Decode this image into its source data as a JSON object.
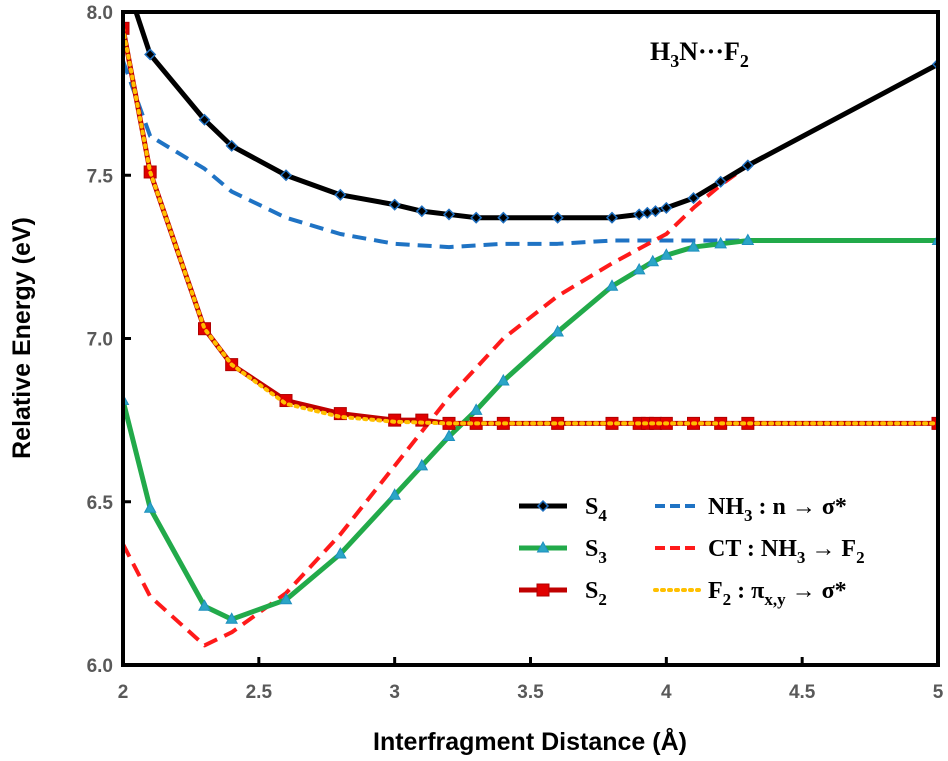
{
  "chart_data": {
    "type": "line",
    "title": "",
    "annotation": {
      "main": "H",
      "sub1": "3",
      "mid": "N···F",
      "sub2": "2"
    },
    "xlabel": "Interfragment Distance (Å)",
    "ylabel": "Relative Energy (eV)",
    "xlim": [
      2,
      5
    ],
    "ylim": [
      6.0,
      8.0
    ],
    "xticks": [
      "2",
      "2.5",
      "3",
      "3.5",
      "4",
      "4.5",
      "5"
    ],
    "yticks": [
      "6.0",
      "6.5",
      "7.0",
      "7.5",
      "8.0"
    ],
    "grid": false,
    "legend_position": "bottom-right",
    "series": [
      {
        "name": "S4",
        "label_main": "S",
        "label_sub": "4",
        "color": "#000000",
        "marker": "diamond",
        "marker_color": "#1f6fbf",
        "style": "solid",
        "x": [
          2.0,
          2.1,
          2.3,
          2.4,
          2.6,
          2.8,
          3.0,
          3.1,
          3.2,
          3.3,
          3.4,
          3.6,
          3.8,
          3.9,
          3.93,
          3.96,
          4.0,
          4.1,
          4.2,
          4.3,
          5.0
        ],
        "y": [
          8.12,
          7.87,
          7.67,
          7.59,
          7.5,
          7.44,
          7.41,
          7.39,
          7.38,
          7.37,
          7.37,
          7.37,
          7.37,
          7.38,
          7.385,
          7.39,
          7.4,
          7.43,
          7.48,
          7.53,
          7.84
        ]
      },
      {
        "name": "S3",
        "label_main": "S",
        "label_sub": "3",
        "color": "#22aa4a",
        "marker": "triangle",
        "marker_color": "#1f8fbf",
        "style": "solid",
        "x": [
          2.0,
          2.1,
          2.3,
          2.4,
          2.6,
          2.8,
          3.0,
          3.1,
          3.2,
          3.3,
          3.4,
          3.6,
          3.8,
          3.9,
          3.95,
          4.0,
          4.1,
          4.2,
          4.3,
          5.0
        ],
        "y": [
          6.81,
          6.48,
          6.18,
          6.14,
          6.2,
          6.34,
          6.52,
          6.61,
          6.7,
          6.78,
          6.87,
          7.02,
          7.16,
          7.21,
          7.235,
          7.255,
          7.28,
          7.29,
          7.3,
          7.3
        ]
      },
      {
        "name": "S2",
        "label_main": "S",
        "label_sub": "2",
        "color": "#c00000",
        "marker": "square",
        "marker_color": "#e00000",
        "style": "solid",
        "x": [
          2.0,
          2.1,
          2.3,
          2.4,
          2.6,
          2.8,
          3.0,
          3.1,
          3.2,
          3.3,
          3.4,
          3.6,
          3.8,
          3.9,
          3.93,
          3.96,
          4.0,
          4.1,
          4.2,
          4.3,
          5.0
        ],
        "y": [
          7.95,
          7.51,
          7.03,
          6.92,
          6.81,
          6.77,
          6.75,
          6.75,
          6.74,
          6.74,
          6.74,
          6.74,
          6.74,
          6.74,
          6.74,
          6.74,
          6.74,
          6.74,
          6.74,
          6.74,
          6.74
        ]
      },
      {
        "name": "NH3 : n → σ*",
        "label_main": "NH",
        "label_sub": "3",
        "label_rest": " : n → σ*",
        "color": "#1f73c4",
        "style": "dashed",
        "x": [
          2.0,
          2.1,
          2.3,
          2.4,
          2.6,
          2.8,
          3.0,
          3.2,
          3.4,
          3.6,
          3.8,
          4.0,
          4.3
        ],
        "y": [
          7.85,
          7.62,
          7.52,
          7.45,
          7.37,
          7.32,
          7.29,
          7.28,
          7.29,
          7.29,
          7.3,
          7.3,
          7.3
        ]
      },
      {
        "name": "CT : NH3 → F2",
        "label_main": "CT : NH",
        "label_sub": "3",
        "label_rest": " → F",
        "label_sub2": "2",
        "color": "#ff1a1a",
        "style": "dashed",
        "x": [
          2.0,
          2.1,
          2.3,
          2.4,
          2.6,
          2.8,
          3.0,
          3.2,
          3.4,
          3.6,
          3.8,
          4.0,
          4.1,
          4.2,
          4.3,
          5.0
        ],
        "y": [
          6.37,
          6.21,
          6.06,
          6.1,
          6.22,
          6.4,
          6.61,
          6.82,
          7.0,
          7.13,
          7.23,
          7.32,
          7.4,
          7.47,
          7.53,
          7.84
        ]
      },
      {
        "name": "F2 : πx,y → σ*",
        "label_main": "F",
        "label_sub": "2",
        "label_rest": " :  π",
        "label_sub2": "x,y",
        "label_rest2": " → σ*",
        "color": "#ffc000",
        "style": "dotted",
        "x": [
          2.0,
          2.1,
          2.3,
          2.4,
          2.6,
          2.8,
          3.0,
          3.2,
          3.4,
          3.6,
          3.8,
          4.0,
          4.3,
          5.0
        ],
        "y": [
          7.95,
          7.51,
          7.03,
          6.92,
          6.8,
          6.76,
          6.745,
          6.74,
          6.74,
          6.74,
          6.74,
          6.74,
          6.74,
          6.74
        ]
      }
    ]
  }
}
